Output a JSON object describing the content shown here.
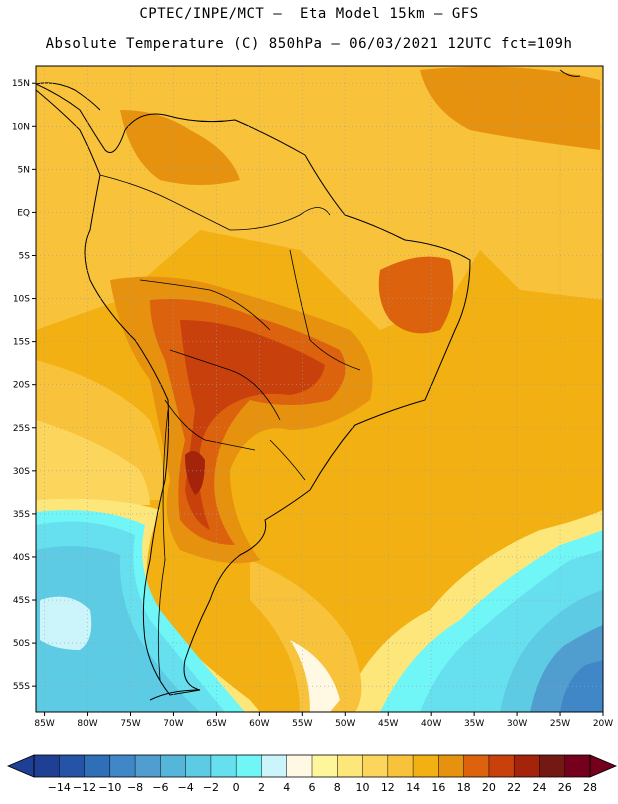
{
  "header": {
    "line1": "CPTEC/INPE/MCT –  Eta Model 15km – GFS",
    "line2": "Absolute Temperature (C) 850hPa – 06/03/2021 12UTC fct=109h"
  },
  "map": {
    "lon_labels": [
      "85W",
      "80W",
      "75W",
      "70W",
      "65W",
      "60W",
      "55W",
      "50W",
      "45W",
      "40W",
      "35W",
      "30W",
      "25W",
      "20W"
    ],
    "lat_labels": [
      "15N",
      "10N",
      "5N",
      "EQ",
      "5S",
      "10S",
      "15S",
      "20S",
      "25S",
      "30S",
      "35S",
      "40S",
      "45S",
      "50S",
      "55S"
    ],
    "lon_range": [
      -86,
      -20
    ],
    "lat_range": [
      17,
      -58
    ],
    "grid": "dotted"
  },
  "colorbar": {
    "labels": [
      "-14",
      "-12",
      "-10",
      "-8",
      "-6",
      "-4",
      "-2",
      "0",
      "2",
      "4",
      "6",
      "8",
      "10",
      "12",
      "14",
      "16",
      "18",
      "20",
      "22",
      "24",
      "26",
      "28"
    ],
    "colors": [
      "#1e3f94",
      "#2554a6",
      "#2e6fb8",
      "#3f87c6",
      "#4f9ecf",
      "#55b6d9",
      "#5ccbe3",
      "#66e0ee",
      "#70f6f6",
      "#ccf5fb",
      "#fff8e3",
      "#fff59a",
      "#fee77a",
      "#fcd65c",
      "#f8c23b",
      "#f2b012",
      "#e7920f",
      "#dc620d",
      "#c8400c",
      "#a3230b",
      "#731812",
      "#75001e"
    ]
  }
}
